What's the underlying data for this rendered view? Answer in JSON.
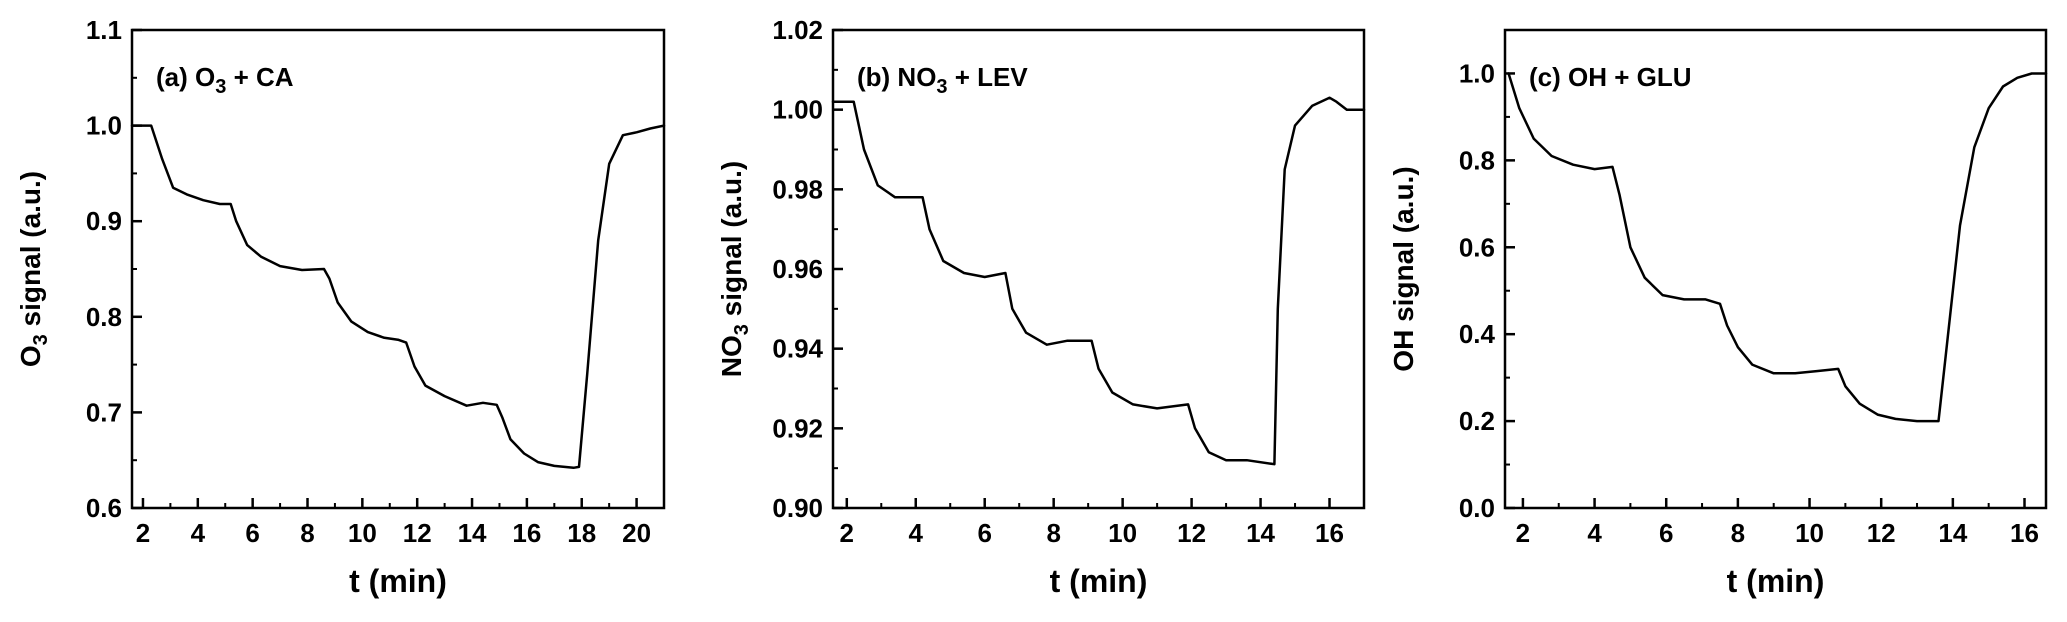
{
  "chart_data": [
    {
      "type": "line",
      "panel_label": "(a) O3 + CA",
      "xlabel": "t (min)",
      "ylabel": "O3 signal (a.u.)",
      "xlim": [
        1.6,
        21.0
      ],
      "ylim": [
        0.6,
        1.1
      ],
      "xticks": [
        2,
        4,
        6,
        8,
        10,
        12,
        14,
        16,
        18,
        20
      ],
      "yticks": [
        0.6,
        0.7,
        0.8,
        0.9,
        1.0,
        1.1
      ],
      "ytick_decimals": 1,
      "grid": false,
      "legend": "none",
      "series": [
        {
          "color": "#000000",
          "x": [
            1.6,
            2.3,
            2.7,
            3.1,
            3.6,
            4.2,
            4.8,
            5.2,
            5.4,
            5.8,
            6.3,
            7.0,
            7.8,
            8.6,
            8.8,
            9.1,
            9.6,
            10.2,
            10.8,
            11.3,
            11.6,
            11.9,
            12.3,
            13.0,
            13.8,
            14.4,
            14.9,
            15.1,
            15.4,
            15.9,
            16.4,
            17.0,
            17.7,
            17.9,
            18.2,
            18.6,
            19.0,
            19.5,
            20.0,
            20.5,
            21.0
          ],
          "values": [
            1.0,
            1.0,
            0.965,
            0.935,
            0.928,
            0.922,
            0.918,
            0.918,
            0.9,
            0.875,
            0.863,
            0.853,
            0.849,
            0.85,
            0.84,
            0.815,
            0.795,
            0.784,
            0.778,
            0.776,
            0.773,
            0.748,
            0.728,
            0.717,
            0.707,
            0.71,
            0.708,
            0.695,
            0.672,
            0.657,
            0.648,
            0.644,
            0.642,
            0.643,
            0.74,
            0.88,
            0.96,
            0.99,
            0.993,
            0.997,
            1.0
          ]
        }
      ]
    },
    {
      "type": "line",
      "panel_label": "(b) NO3 + LEV",
      "xlabel": "t (min)",
      "ylabel": "NO3 signal (a.u.)",
      "xlim": [
        1.6,
        17.0
      ],
      "ylim": [
        0.9,
        1.02
      ],
      "xticks": [
        2,
        4,
        6,
        8,
        10,
        12,
        14,
        16
      ],
      "yticks": [
        0.9,
        0.92,
        0.94,
        0.96,
        0.98,
        1.0,
        1.02
      ],
      "ytick_decimals": 2,
      "grid": false,
      "legend": "none",
      "series": [
        {
          "color": "#000000",
          "x": [
            1.6,
            2.2,
            2.5,
            2.9,
            3.4,
            4.2,
            4.4,
            4.8,
            5.4,
            6.0,
            6.6,
            6.8,
            7.2,
            7.8,
            8.4,
            9.1,
            9.3,
            9.7,
            10.3,
            11.0,
            11.9,
            12.1,
            12.5,
            13.0,
            13.6,
            14.4,
            14.5,
            14.7,
            15.0,
            15.5,
            16.0,
            16.2,
            16.5,
            17.0
          ],
          "values": [
            1.002,
            1.002,
            0.99,
            0.981,
            0.978,
            0.978,
            0.97,
            0.962,
            0.959,
            0.958,
            0.959,
            0.95,
            0.944,
            0.941,
            0.942,
            0.942,
            0.935,
            0.929,
            0.926,
            0.925,
            0.926,
            0.92,
            0.914,
            0.912,
            0.912,
            0.911,
            0.95,
            0.985,
            0.996,
            1.001,
            1.003,
            1.002,
            1.0,
            1.0
          ]
        }
      ]
    },
    {
      "type": "line",
      "panel_label": "(c) OH + GLU",
      "xlabel": "t (min)",
      "ylabel": "OH signal (a.u.)",
      "xlim": [
        1.5,
        16.6
      ],
      "ylim": [
        0.0,
        1.1
      ],
      "xticks": [
        2,
        4,
        6,
        8,
        10,
        12,
        14,
        16
      ],
      "yticks": [
        0.0,
        0.2,
        0.4,
        0.6,
        0.8,
        1.0
      ],
      "ytick_decimals": 1,
      "grid": false,
      "legend": "none",
      "series": [
        {
          "color": "#000000",
          "x": [
            1.6,
            1.9,
            2.3,
            2.8,
            3.4,
            4.0,
            4.5,
            4.7,
            5.0,
            5.4,
            5.9,
            6.5,
            7.1,
            7.5,
            7.7,
            8.0,
            8.4,
            9.0,
            9.6,
            10.2,
            10.8,
            11.0,
            11.4,
            11.9,
            12.4,
            13.0,
            13.6,
            13.8,
            14.2,
            14.6,
            15.0,
            15.4,
            15.8,
            16.2,
            16.6
          ],
          "values": [
            1.0,
            0.92,
            0.85,
            0.81,
            0.79,
            0.78,
            0.785,
            0.72,
            0.6,
            0.53,
            0.49,
            0.48,
            0.48,
            0.47,
            0.42,
            0.37,
            0.33,
            0.31,
            0.31,
            0.315,
            0.32,
            0.28,
            0.24,
            0.215,
            0.205,
            0.2,
            0.2,
            0.35,
            0.65,
            0.83,
            0.92,
            0.97,
            0.99,
            1.0,
            1.0
          ]
        }
      ]
    }
  ]
}
